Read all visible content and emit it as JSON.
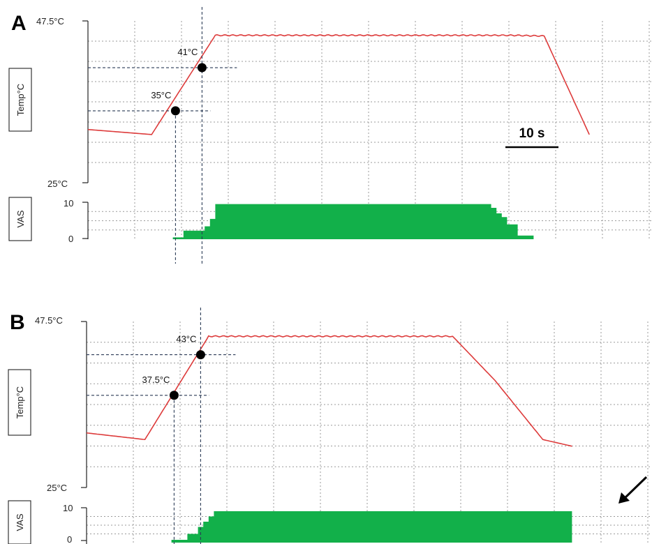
{
  "colors": {
    "temperature": "#dd3b3b",
    "vas": "#12b04a",
    "grid": "#9a9a9a",
    "crosshair": "#2a3a55",
    "axis": "#222222"
  },
  "scale_bar": {
    "label": "10 s",
    "seconds": 10
  },
  "chart_data": [
    {
      "panel": "A",
      "type": "line",
      "temp_axis": {
        "label": "Temp°C",
        "top_label": "47.5°C",
        "bottom_label": "25°C",
        "ylim": [
          25,
          47.5
        ]
      },
      "vas_axis": {
        "label": "VAS",
        "top_label": "10",
        "bottom_label": "0",
        "ylim": [
          0,
          10
        ]
      },
      "temperature": {
        "x": [
          0,
          12,
          24,
          80,
          86,
          94.5
        ],
        "y": [
          32.4,
          31.7,
          45.5,
          45.5,
          45.4,
          31.7
        ]
      },
      "vas": {
        "x": [
          16,
          18,
          22,
          23,
          24,
          50,
          75,
          76,
          77,
          78,
          79,
          81,
          84
        ],
        "y": [
          0.5,
          2.3,
          3.5,
          5.5,
          9.5,
          9.5,
          9.5,
          8.5,
          7,
          6,
          4,
          1,
          0
        ]
      },
      "markers": [
        {
          "label": "35°C",
          "x": 16.5,
          "y": 35
        },
        {
          "label": "41°C",
          "x": 21.5,
          "y": 41
        }
      ]
    },
    {
      "panel": "B",
      "type": "line",
      "temp_axis": {
        "label": "Temp°C",
        "top_label": "47.5°C",
        "bottom_label": "25°C",
        "ylim": [
          25,
          47.5
        ]
      },
      "vas_axis": {
        "label": "VAS",
        "top_label": "10",
        "bottom_label": "0",
        "ylim": [
          0,
          10
        ]
      },
      "temperature": {
        "x": [
          0,
          11,
          23,
          69,
          77,
          86,
          91.5
        ],
        "y": [
          32.4,
          31.5,
          45.5,
          45.5,
          39.5,
          31.5,
          30.6
        ]
      },
      "vas": {
        "x": [
          16,
          19,
          21,
          22,
          23,
          24,
          91.5
        ],
        "y": [
          0.8,
          2.5,
          4.5,
          6,
          7.5,
          9,
          9
        ]
      },
      "markers": [
        {
          "label": "37.5°C",
          "x": 16.5,
          "y": 37.5
        },
        {
          "label": "43°C",
          "x": 21.5,
          "y": 43
        }
      ]
    }
  ]
}
